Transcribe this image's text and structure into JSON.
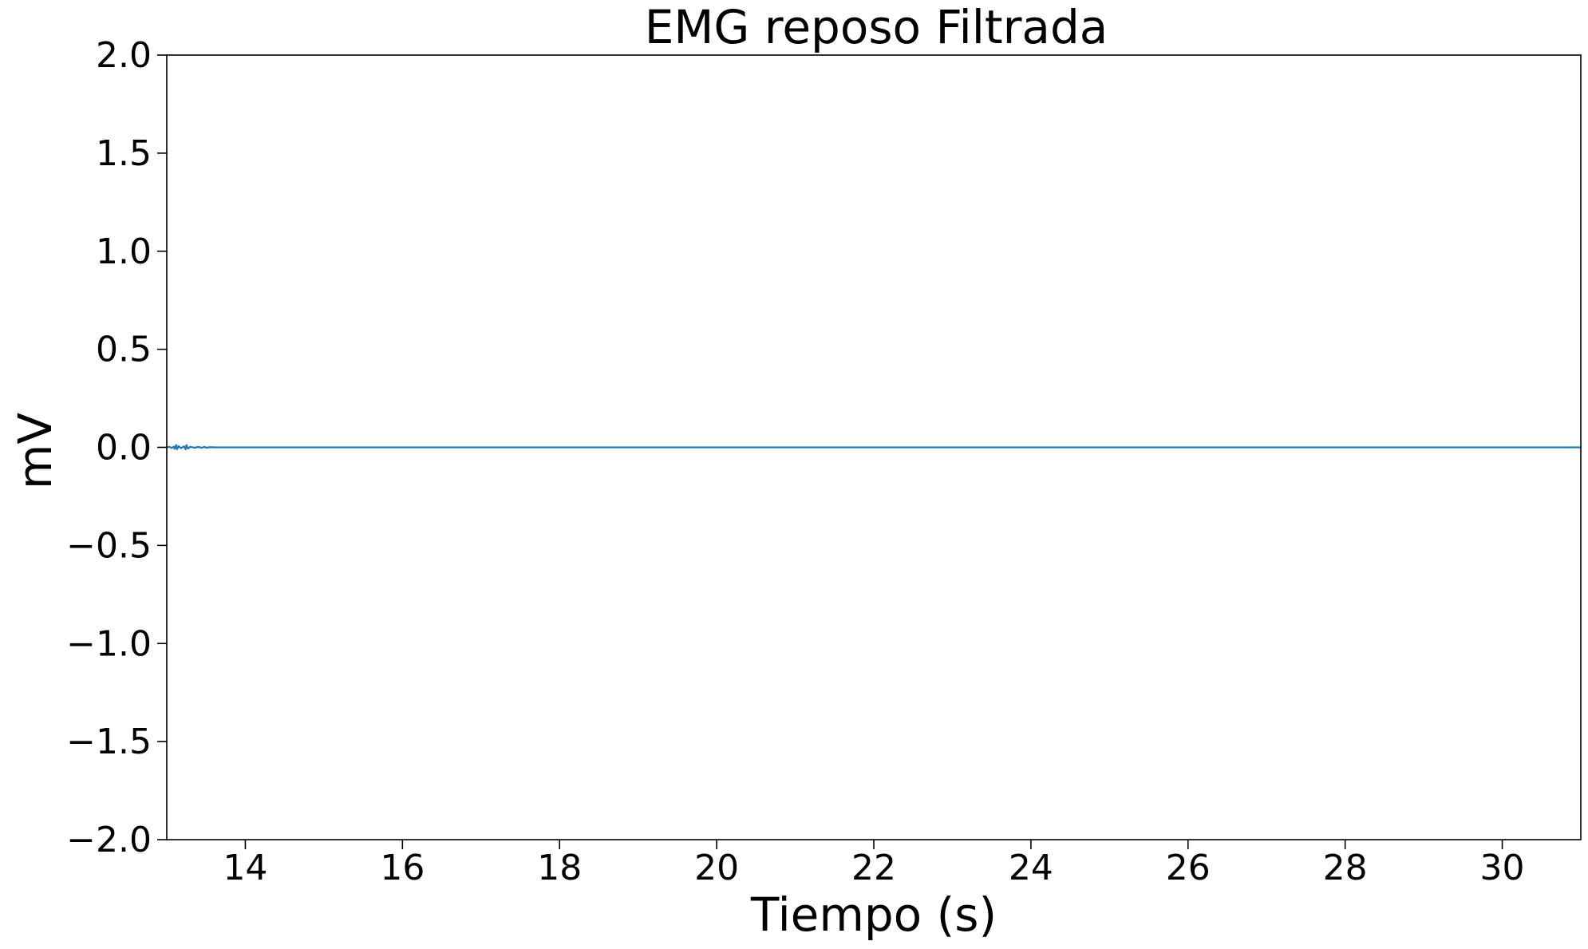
{
  "chart_data": {
    "type": "line",
    "title": "EMG reposo Filtrada",
    "xlabel": "Tiempo (s)",
    "ylabel": "mV",
    "xlim": [
      13.0,
      31.0
    ],
    "ylim": [
      -2.0,
      2.0
    ],
    "xticks": [
      14,
      16,
      18,
      20,
      22,
      24,
      26,
      28,
      30
    ],
    "xtick_labels": [
      "14",
      "16",
      "18",
      "20",
      "22",
      "24",
      "26",
      "28",
      "30"
    ],
    "yticks": [
      2.0,
      1.5,
      1.0,
      0.5,
      0.0,
      -0.5,
      -1.0,
      -1.5,
      -2.0
    ],
    "ytick_labels": [
      "2.0",
      "1.5",
      "1.0",
      "0.5",
      "0.0",
      "−0.5",
      "−1.0",
      "−1.5",
      "−2.0"
    ],
    "grid": false,
    "legend": "none",
    "series": [
      {
        "color": "#1f77b4",
        "x": [
          13.0,
          13.03,
          13.06,
          13.09,
          13.1,
          13.12,
          13.13,
          13.15,
          13.18,
          13.22,
          13.24,
          13.25,
          13.27,
          13.3,
          13.35,
          13.4,
          13.45,
          13.48,
          13.5,
          13.55,
          13.6,
          14.0,
          16.0,
          18.0,
          20.0,
          22.0,
          24.0,
          26.0,
          28.0,
          30.0,
          31.0
        ],
        "y": [
          0.0,
          0.003,
          -0.003,
          0.004,
          -0.008,
          0.012,
          -0.01,
          0.006,
          -0.004,
          0.005,
          -0.01,
          0.012,
          -0.006,
          0.003,
          -0.002,
          0.002,
          -0.002,
          0.003,
          -0.002,
          0.001,
          0.0,
          0.0,
          0.0,
          0.0,
          0.0,
          0.0,
          0.0,
          0.0,
          0.0,
          0.0,
          0.0
        ]
      }
    ]
  }
}
